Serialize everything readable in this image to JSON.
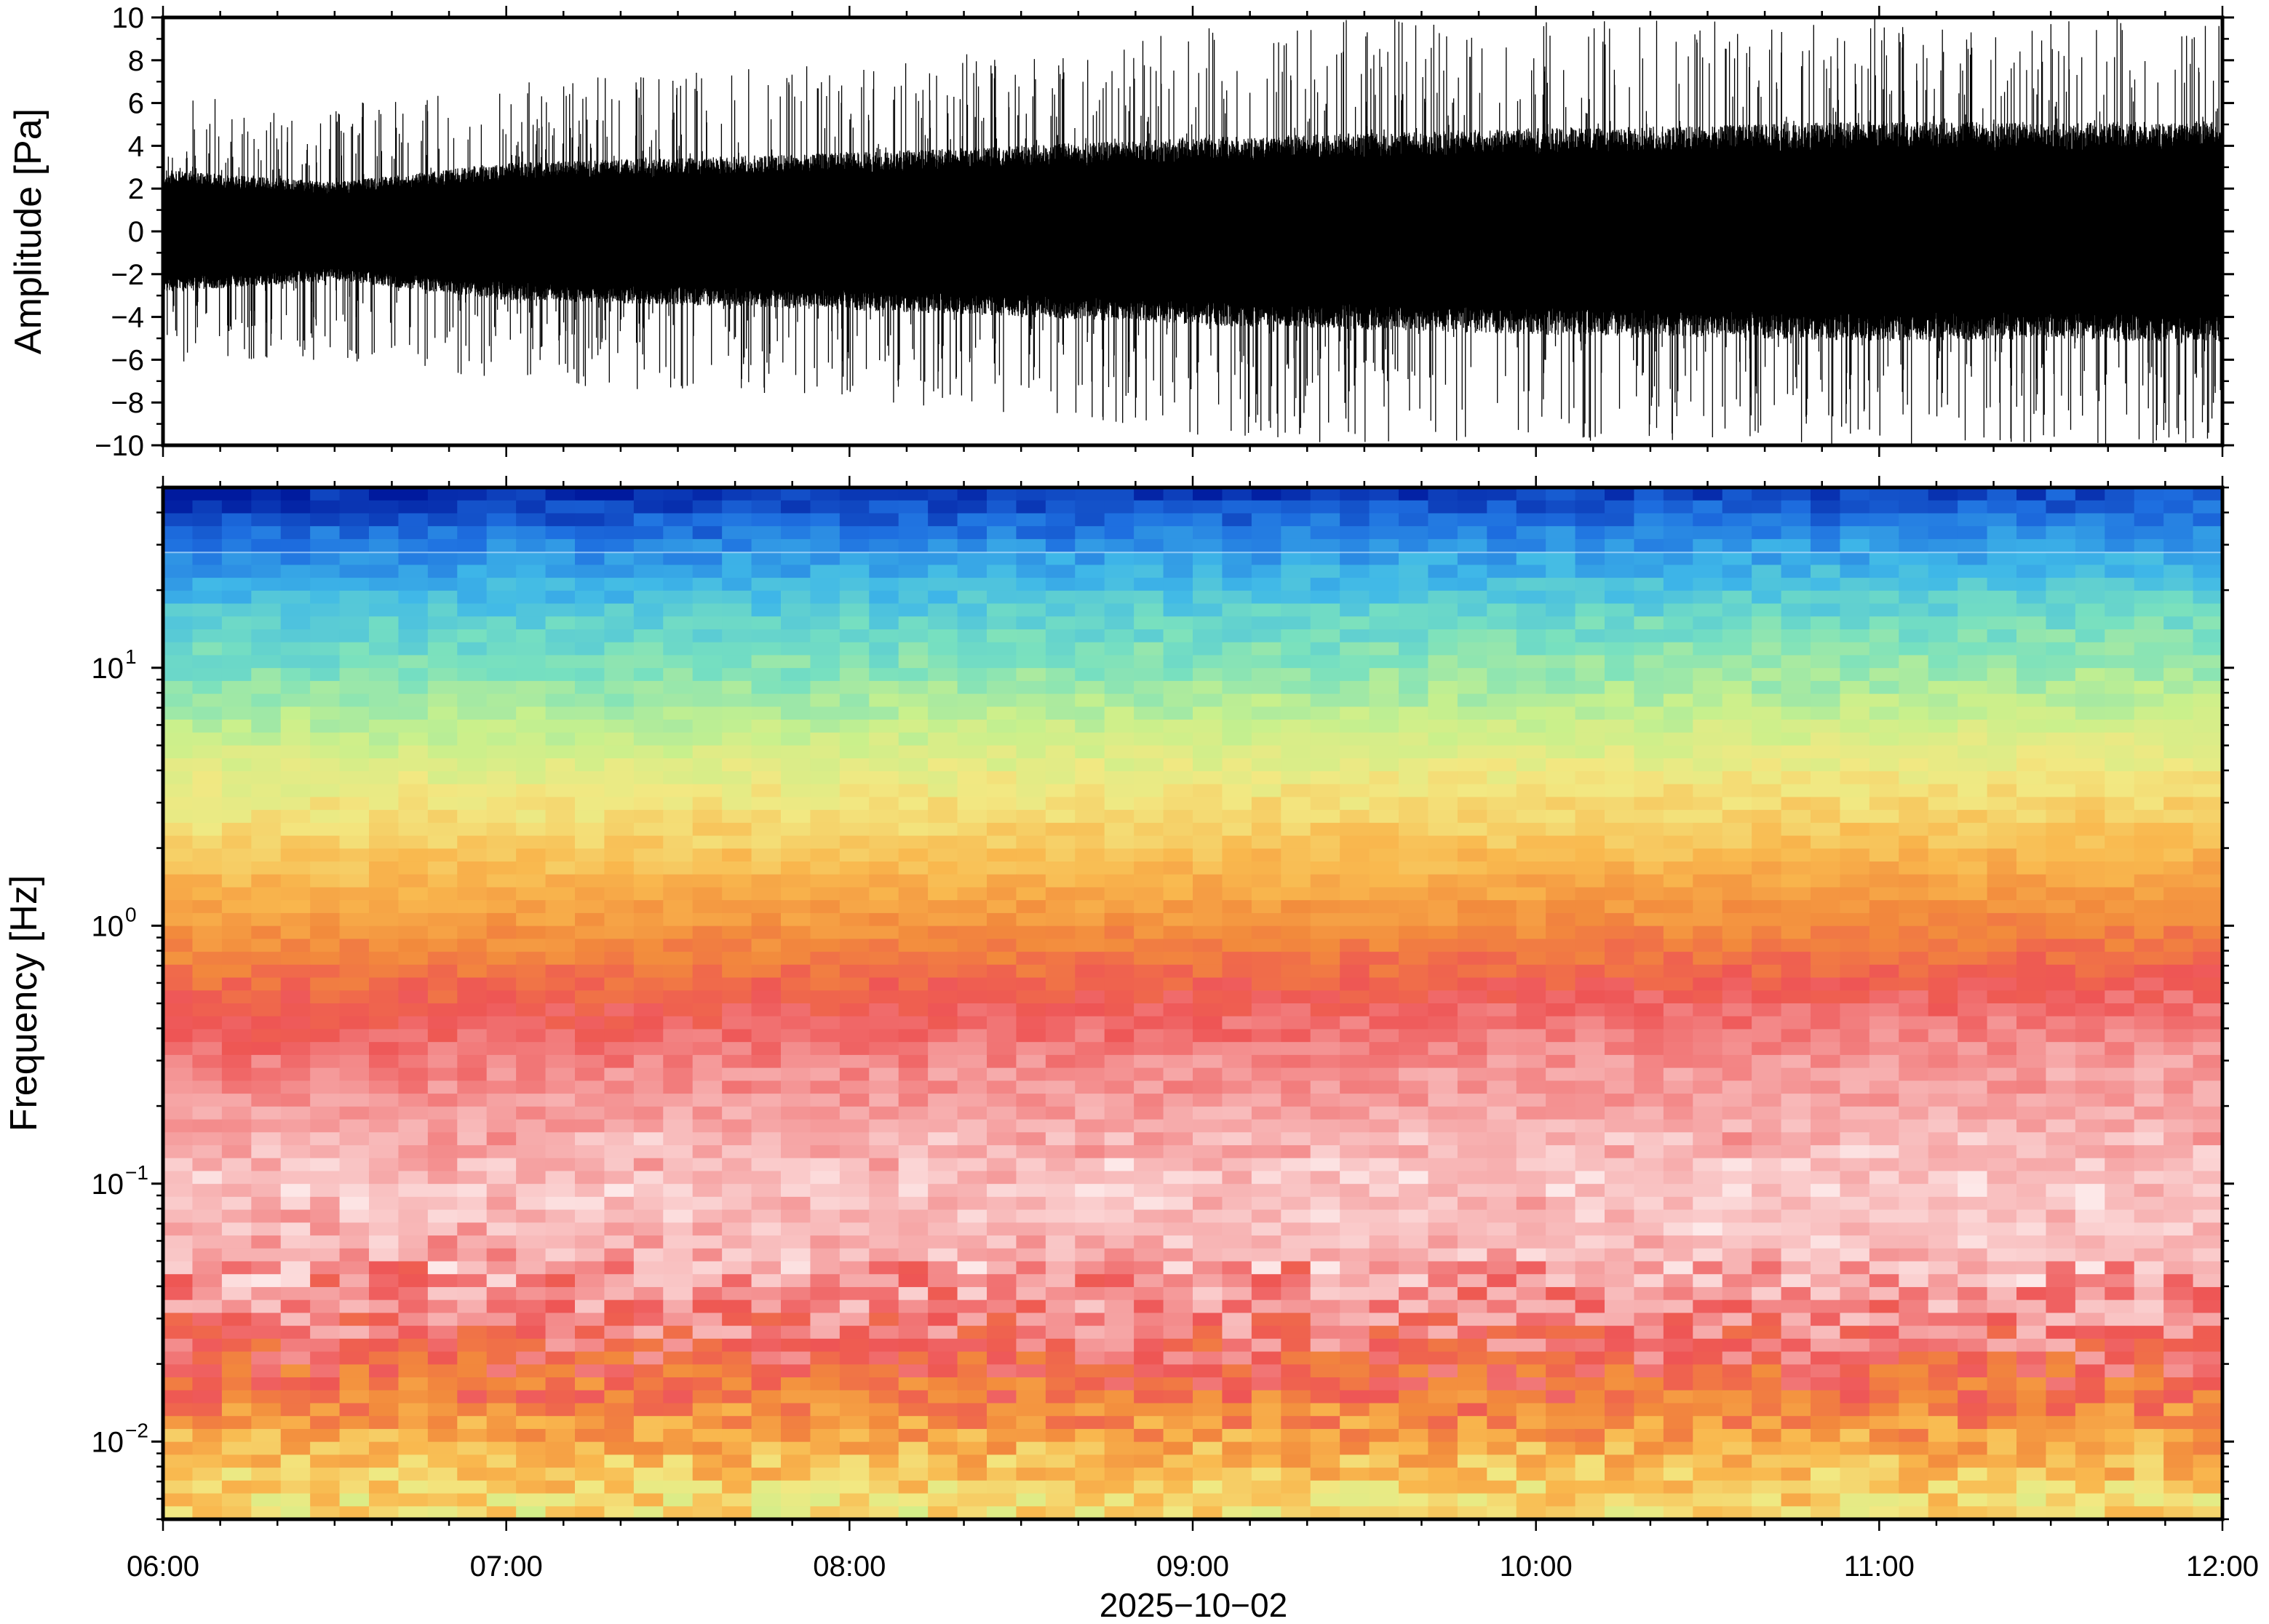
{
  "chart_data": [
    {
      "type": "line",
      "name": "waveform",
      "ylabel": "Amplitude [Pa]",
      "ylim": [
        -10,
        10
      ],
      "yticks": [
        10,
        8,
        6,
        4,
        2,
        0,
        -2,
        -4,
        -6,
        -8,
        -10
      ],
      "ytick_labels": [
        "10",
        "8",
        "6",
        "4",
        "2",
        "0",
        "−2",
        "−4",
        "−6",
        "−8",
        "−10"
      ],
      "xlim": [
        "06:00",
        "12:00"
      ],
      "color": "#000000",
      "envelope_time_hours": [
        6.0,
        6.5,
        7.0,
        7.5,
        8.0,
        8.5,
        9.0,
        9.5,
        10.0,
        10.5,
        11.0,
        11.5,
        12.0
      ],
      "envelope_core_pa": [
        2.5,
        2.0,
        2.8,
        3.0,
        3.2,
        3.5,
        3.8,
        4.0,
        4.2,
        4.3,
        4.5,
        4.4,
        4.5
      ],
      "envelope_spike_pa": [
        6.5,
        6.0,
        7.0,
        7.5,
        8.0,
        8.5,
        9.5,
        10.0,
        10.0,
        10.0,
        10.0,
        10.0,
        10.0
      ]
    },
    {
      "type": "heatmap",
      "name": "spectrogram",
      "ylabel": "Frequency [Hz]",
      "yscale": "log",
      "ylim": [
        0.005,
        50
      ],
      "yticks": [
        10,
        1,
        0.1,
        0.01
      ],
      "ytick_labels": [
        {
          "base": "10",
          "exp": "1"
        },
        {
          "base": "10",
          "exp": "0"
        },
        {
          "base": "10",
          "exp": "−1"
        },
        {
          "base": "10",
          "exp": "−2"
        }
      ],
      "xlabel": "2025−10−02",
      "xlim": [
        "06:00",
        "12:00"
      ],
      "xtick_labels": [
        "06:00",
        "07:00",
        "08:00",
        "09:00",
        "10:00",
        "11:00",
        "12:00"
      ],
      "colormap": [
        "#001a9e",
        "#1e6fe0",
        "#3fb8e8",
        "#77e0c0",
        "#c8f08c",
        "#f2e882",
        "#f9b84e",
        "#f28a3c",
        "#ee5555",
        "#f6a8a8",
        "#fde8e8"
      ],
      "time_bins": 70,
      "frequency_bins": 80
    }
  ]
}
